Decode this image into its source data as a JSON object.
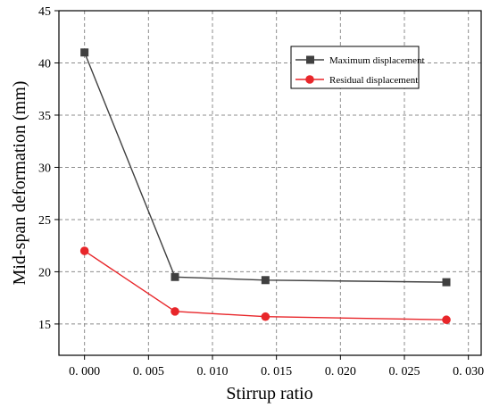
{
  "chart_data": {
    "type": "line",
    "title": "",
    "xlabel": "Stirrup ratio",
    "ylabel": "Mid-span deformation (mm)",
    "xlim": [
      -0.002,
      0.031
    ],
    "ylim": [
      12,
      45
    ],
    "x_ticks": [
      0.0,
      0.005,
      0.01,
      0.015,
      0.02,
      0.025,
      0.03
    ],
    "x_tick_labels": [
      "0. 000",
      "0. 005",
      "0. 010",
      "0. 015",
      "0. 020",
      "0. 025",
      "0. 030"
    ],
    "y_ticks": [
      15,
      20,
      25,
      30,
      35,
      40,
      45
    ],
    "y_tick_labels": [
      "15",
      "20",
      "25",
      "30",
      "35",
      "40",
      "45"
    ],
    "grid": true,
    "legend_position": "top-right",
    "series": [
      {
        "name": "Maximum displacement",
        "color": "#404040",
        "marker": "square",
        "x": [
          0.0,
          0.00707,
          0.01414,
          0.02828
        ],
        "y": [
          41.0,
          19.5,
          19.2,
          19.0
        ]
      },
      {
        "name": "Residual displacement",
        "color": "#e8262a",
        "marker": "circle",
        "x": [
          0.0,
          0.00707,
          0.01414,
          0.02828
        ],
        "y": [
          22.0,
          16.2,
          15.7,
          15.4
        ]
      }
    ]
  }
}
